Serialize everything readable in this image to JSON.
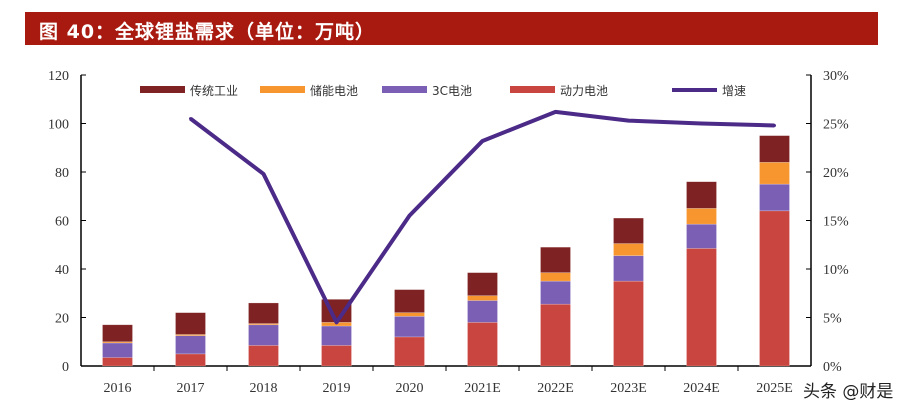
{
  "title": "图 40：全球锂盐需求（单位：万吨）",
  "watermark": "头条 @财是",
  "chart_data": {
    "type": "bar",
    "stacked": true,
    "title": "图 40：全球锂盐需求（单位：万吨）",
    "categories": [
      "2016",
      "2017",
      "2018",
      "2019",
      "2020",
      "2021E",
      "2022E",
      "2023E",
      "2024E",
      "2025E"
    ],
    "series": [
      {
        "name": "动力电池",
        "color": "#c9453f",
        "values": [
          3.5,
          5,
          8.5,
          8.5,
          12,
          18,
          25.5,
          35,
          48.5,
          64
        ]
      },
      {
        "name": "3C电池",
        "color": "#7b5fb5",
        "values": [
          6,
          7.5,
          8.5,
          8,
          8.5,
          9,
          9.5,
          10.5,
          10,
          11
        ]
      },
      {
        "name": "储能电池",
        "color": "#f7962f",
        "values": [
          0.5,
          0.5,
          0.5,
          1.5,
          1.5,
          2,
          3.5,
          5,
          6.5,
          9
        ]
      },
      {
        "name": "传统工业",
        "color": "#7f2223",
        "values": [
          7,
          9,
          8.5,
          9.5,
          9.5,
          9.5,
          10.5,
          10.5,
          11,
          11
        ]
      }
    ],
    "line_series": {
      "name": "增速",
      "color": "#4b2a88",
      "axis": "right",
      "values": [
        null,
        25.5,
        19.8,
        4.5,
        15.5,
        23.2,
        26.2,
        25.3,
        25.0,
        24.8
      ]
    },
    "legend_order": [
      "传统工业",
      "储能电池",
      "3C电池",
      "动力电池",
      "增速"
    ],
    "legend_position": "top",
    "ylim": [
      0,
      120
    ],
    "yticks": [
      0,
      20,
      40,
      60,
      80,
      100,
      120
    ],
    "y2lim": [
      0,
      30
    ],
    "y2ticks": [
      "0%",
      "5%",
      "10%",
      "15%",
      "20%",
      "25%",
      "30%"
    ],
    "xlabel": "",
    "ylabel": "",
    "grid": false
  }
}
